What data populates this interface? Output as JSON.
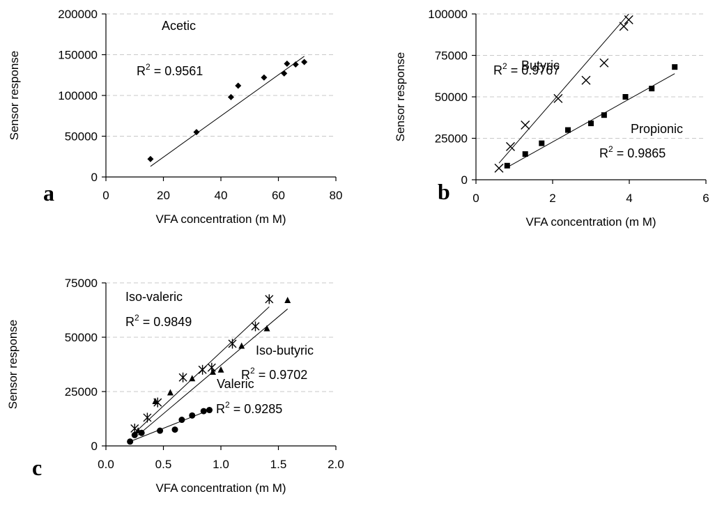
{
  "chart_data": [
    {
      "type": "scatter",
      "panel": "a",
      "xlabel": "VFA concentration (m M)",
      "ylabel": "Sensor response",
      "xlim": [
        0,
        80
      ],
      "ylim": [
        0,
        200000
      ],
      "xticks": [
        "0",
        "20",
        "40",
        "60",
        "80"
      ],
      "yticks": [
        "0",
        "50000",
        "100000",
        "150000",
        "200000"
      ],
      "grid": "horizontal dashed",
      "series": [
        {
          "label": "Acetic",
          "r2_text": "= 0.9561",
          "marker": "diamond",
          "points": [
            [
              15.5,
              22000
            ],
            [
              31.5,
              55000
            ],
            [
              43.5,
              98000
            ],
            [
              46,
              112000
            ],
            [
              55,
              122000
            ],
            [
              62,
              127000
            ],
            [
              63,
              139000
            ],
            [
              66,
              138000
            ],
            [
              69,
              141000
            ]
          ],
          "trend": [
            [
              15.5,
              13000
            ],
            [
              69,
              148000
            ]
          ]
        }
      ]
    },
    {
      "type": "scatter",
      "panel": "b",
      "xlabel": "VFA concentration (m M)",
      "ylabel": "Sensor response",
      "xlim": [
        0,
        7
      ],
      "ylim": [
        0,
        100000
      ],
      "xticks": [
        "0",
        "2",
        "4",
        "6"
      ],
      "yticks": [
        "0",
        "25000",
        "50000",
        "75000",
        "100000"
      ],
      "grid": "horizontal dashed",
      "series": [
        {
          "label": "Butyric",
          "r2_text": "= 0.9767",
          "marker": "x",
          "points": [
            [
              0.7,
              7000
            ],
            [
              1.05,
              20000
            ],
            [
              1.5,
              33000
            ],
            [
              2.5,
              49000
            ],
            [
              3.35,
              60000
            ],
            [
              3.9,
              70500
            ],
            [
              4.5,
              92500
            ],
            [
              4.65,
              96500
            ]
          ],
          "trend": [
            [
              0.7,
              10000
            ],
            [
              4.65,
              100000
            ]
          ]
        },
        {
          "label": "Propionic",
          "r2_text": "= 0.9865",
          "marker": "square",
          "points": [
            [
              0.95,
              8500
            ],
            [
              1.5,
              15500
            ],
            [
              2.0,
              22000
            ],
            [
              2.8,
              30000
            ],
            [
              3.5,
              34000
            ],
            [
              3.9,
              39000
            ],
            [
              4.55,
              50000
            ],
            [
              5.35,
              55000
            ],
            [
              6.05,
              68000
            ]
          ],
          "trend": [
            [
              0.95,
              7500
            ],
            [
              6.05,
              64000
            ]
          ]
        }
      ]
    },
    {
      "type": "scatter",
      "panel": "c",
      "xlabel": "VFA concentration (m M)",
      "ylabel": "Sensor response",
      "xlim": [
        0,
        2
      ],
      "ylim": [
        0,
        75000
      ],
      "xticks": [
        "0.0",
        "0.5",
        "1.0",
        "1.5",
        "2.0"
      ],
      "yticks": [
        "0",
        "25000",
        "50000",
        "75000"
      ],
      "grid": "horizontal dashed",
      "series": [
        {
          "label": "Iso-valeric",
          "r2_text": "= 0.9849",
          "marker": "asterisk",
          "points": [
            [
              0.25,
              8000
            ],
            [
              0.36,
              13000
            ],
            [
              0.45,
              20000
            ],
            [
              0.67,
              31500
            ],
            [
              0.84,
              35000
            ],
            [
              0.92,
              36000
            ],
            [
              1.1,
              47000
            ],
            [
              1.3,
              55000
            ],
            [
              1.42,
              67500
            ]
          ],
          "trend": [
            [
              0.25,
              6000
            ],
            [
              1.42,
              64000
            ]
          ]
        },
        {
          "label": "Iso-butyric",
          "r2_text": "= 0.9702",
          "marker": "triangle",
          "points": [
            [
              0.28,
              7000
            ],
            [
              0.43,
              20500
            ],
            [
              0.56,
              24500
            ],
            [
              0.75,
              31000
            ],
            [
              0.93,
              34000
            ],
            [
              1.0,
              35000
            ],
            [
              1.18,
              46000
            ],
            [
              1.4,
              54000
            ],
            [
              1.58,
              67000
            ]
          ],
          "trend": [
            [
              0.28,
              5000
            ],
            [
              1.58,
              63000
            ]
          ]
        },
        {
          "label": "Valeric",
          "r2_text": "= 0.9285",
          "marker": "circle",
          "points": [
            [
              0.21,
              2000
            ],
            [
              0.25,
              5000
            ],
            [
              0.31,
              6000
            ],
            [
              0.47,
              7000
            ],
            [
              0.6,
              7500
            ],
            [
              0.66,
              12000
            ],
            [
              0.75,
              14000
            ],
            [
              0.85,
              16000
            ],
            [
              0.9,
              16500
            ]
          ],
          "trend": [
            [
              0.21,
              2000
            ],
            [
              0.9,
              16500
            ]
          ]
        }
      ]
    }
  ]
}
